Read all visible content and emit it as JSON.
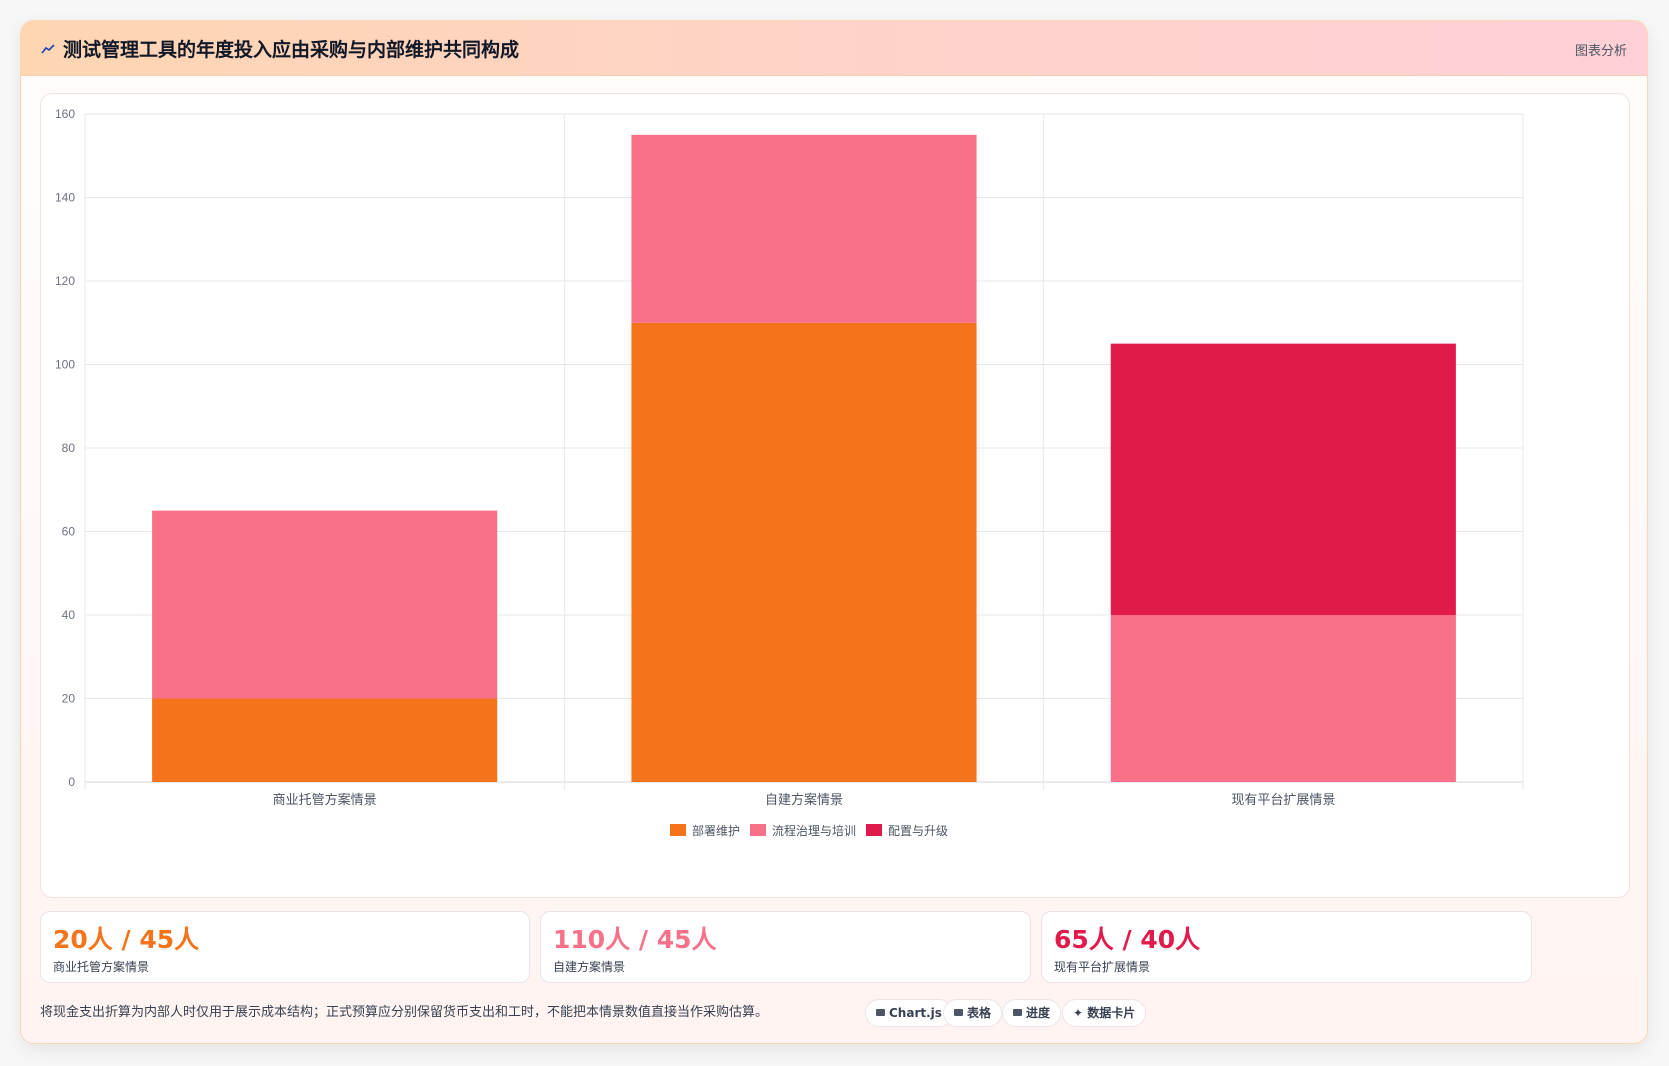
{
  "header": {
    "title": "测试管理工具的年度投入应由采购与内部维护共同构成",
    "tag": "图表分析",
    "icon": "trend-icon"
  },
  "chart_data": {
    "type": "bar",
    "stacked": true,
    "categories": [
      "商业托管方案情景",
      "自建方案情景",
      "现有平台扩展情景"
    ],
    "series": [
      {
        "name": "部署维护",
        "values": [
          20,
          110,
          0
        ],
        "color": "#f4731b"
      },
      {
        "name": "流程治理与培训",
        "values": [
          45,
          45,
          40
        ],
        "color": "#f87189"
      },
      {
        "name": "配置与升级",
        "values": [
          0,
          0,
          65
        ],
        "color": "#e01b4b"
      }
    ],
    "ylim": [
      0,
      160
    ],
    "yticks": [
      0,
      20,
      40,
      60,
      80,
      100,
      120,
      140,
      160
    ],
    "grid": true,
    "legend": "bottom"
  },
  "stats": [
    {
      "value": "20人 / 45人",
      "label": "商业托管方案情景",
      "color": "#f4731b"
    },
    {
      "value": "110人 / 45人",
      "label": "自建方案情景",
      "color": "#f87189"
    },
    {
      "value": "65人 / 40人",
      "label": "现有平台扩展情景",
      "color": "#e01b4b"
    }
  ],
  "note": "将现金支出折算为内部人时仅用于展示成本结构；正式预算应分别保留货币支出和工时，不能把本情景数值直接当作采购估算。",
  "chips": [
    "Chart.js",
    "表格",
    "进度",
    "数据卡片"
  ]
}
